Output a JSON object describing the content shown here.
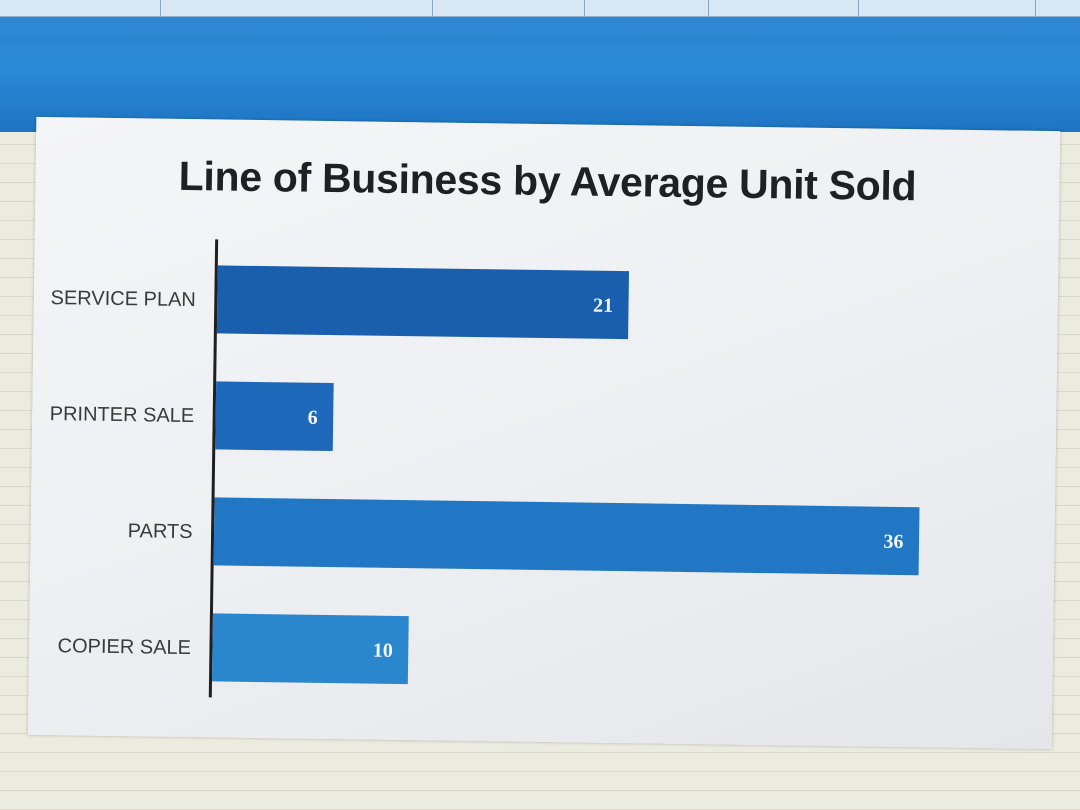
{
  "chart_data": {
    "type": "bar",
    "orientation": "horizontal",
    "title": "Line of Business by Average Unit Sold",
    "categories": [
      "SERVICE PLAN",
      "PRINTER SALE",
      "PARTS",
      "COPIER SALE"
    ],
    "values": [
      21,
      6,
      36,
      10
    ],
    "bar_colors": [
      "#1a5fae",
      "#1d68b8",
      "#2177c4",
      "#2a86cd"
    ],
    "xlabel": "",
    "ylabel": "",
    "xlim": [
      0,
      36
    ],
    "grid": false,
    "legend": "none"
  },
  "screen": {
    "column_headers": [
      "",
      "",
      "",
      "",
      ""
    ],
    "header_color": "#2a88d6"
  }
}
